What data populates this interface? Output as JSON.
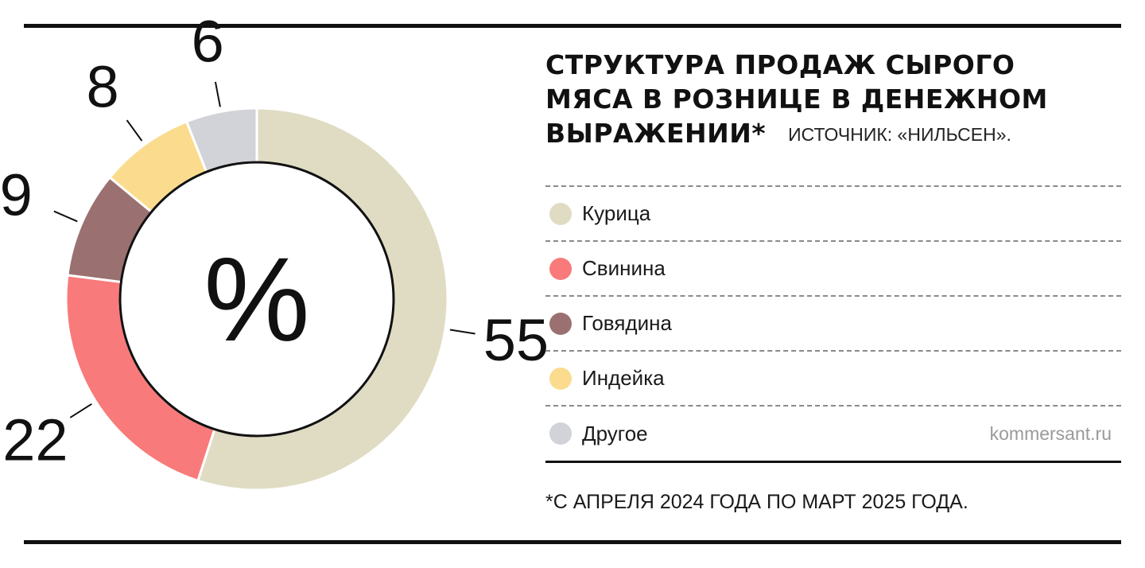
{
  "title_lines": [
    "СТРУКТУРА ПРОДАЖ СЫРОГО",
    "МЯСА В РОЗНИЦЕ В ДЕНЕЖНОМ",
    "ВЫРАЖЕНИИ*"
  ],
  "source": "ИСТОЧНИК: «НИЛЬСЕН».",
  "site": "kommersant.ru",
  "footnote": "*С АПРЕЛЯ 2024 ГОДА ПО МАРТ 2025 ГОДА.",
  "chart_data": {
    "type": "pie",
    "variant": "donut",
    "center_label": "%",
    "unit": "%",
    "legend_placement": "right",
    "categories": [
      "Курица",
      "Свинина",
      "Говядина",
      "Индейка",
      "Другое"
    ],
    "values": [
      55,
      22,
      9,
      8,
      6
    ],
    "colors": [
      "#e0dcc3",
      "#f97a7a",
      "#9a7170",
      "#fbdc8e",
      "#d2d3d8"
    ]
  }
}
